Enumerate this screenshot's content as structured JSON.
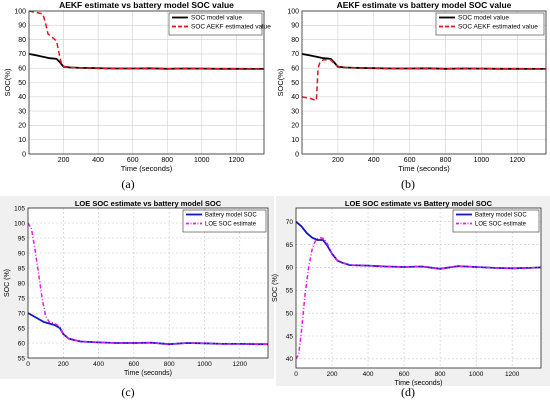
{
  "chart_data": [
    {
      "type": "line",
      "caption": "(a)",
      "title": "AEKF estimate vs battery model  SOC value",
      "xlabel": "Time (seconds)",
      "ylabel": "SOC(%)",
      "xlim": [
        0,
        1360
      ],
      "ylim": [
        0,
        100
      ],
      "xticks": [
        200,
        400,
        600,
        800,
        1000,
        1200
      ],
      "yticks": [
        0,
        10,
        20,
        30,
        40,
        50,
        60,
        70,
        80,
        90,
        100
      ],
      "grid": true,
      "legend_position": "top-right",
      "series": [
        {
          "name": "SOC model value",
          "color": "#000000",
          "style": "solid",
          "x": [
            0,
            40,
            80,
            120,
            160,
            180,
            200,
            240,
            300,
            400,
            500,
            600,
            700,
            800,
            900,
            1000,
            1100,
            1200,
            1300,
            1360
          ],
          "y": [
            70,
            69,
            68,
            67,
            66.5,
            64,
            61,
            60.5,
            60.2,
            60,
            59.8,
            59.8,
            59.9,
            59.6,
            59.8,
            59.7,
            59.6,
            59.6,
            59.5,
            59.5
          ]
        },
        {
          "name": "SOC AEKF estimated value",
          "color": "#e0141a",
          "style": "dashed",
          "x": [
            0,
            40,
            80,
            95,
            110,
            130,
            160,
            175,
            190,
            210,
            240,
            300,
            400,
            500,
            600,
            700,
            800,
            900,
            1000,
            1100,
            1200,
            1300,
            1360
          ],
          "y": [
            100,
            99,
            98,
            92,
            84,
            82,
            79,
            70,
            62,
            61,
            60.5,
            60.2,
            60,
            59.8,
            59.8,
            59.9,
            59.6,
            59.8,
            59.7,
            59.6,
            59.6,
            59.5,
            59.5
          ]
        }
      ]
    },
    {
      "type": "line",
      "caption": "(b)",
      "title": "AEKF estimate vs battery model  SOC value",
      "xlabel": "Time (seconds)",
      "ylabel": "SOC(%)",
      "xlim": [
        0,
        1360
      ],
      "ylim": [
        0,
        100
      ],
      "xticks": [
        200,
        400,
        600,
        800,
        1000,
        1200
      ],
      "yticks": [
        0,
        10,
        20,
        30,
        40,
        50,
        60,
        70,
        80,
        90,
        100
      ],
      "grid": true,
      "legend_position": "top-right",
      "series": [
        {
          "name": "SOC model value",
          "color": "#000000",
          "style": "solid",
          "x": [
            0,
            40,
            80,
            120,
            160,
            180,
            200,
            240,
            300,
            400,
            500,
            600,
            700,
            800,
            900,
            1000,
            1100,
            1200,
            1300,
            1360
          ],
          "y": [
            70,
            69,
            68,
            67,
            66.5,
            64,
            61,
            60.5,
            60.2,
            60,
            59.8,
            59.8,
            59.9,
            59.6,
            59.8,
            59.7,
            59.6,
            59.6,
            59.5,
            59.5
          ]
        },
        {
          "name": "SOC AEKF estimated value",
          "color": "#e0141a",
          "style": "dashed",
          "x": [
            0,
            40,
            80,
            90,
            100,
            120,
            160,
            190,
            210,
            240,
            300,
            400,
            500,
            600,
            700,
            800,
            900,
            1000,
            1100,
            1200,
            1300,
            1360
          ],
          "y": [
            40,
            39,
            37.5,
            60,
            64,
            66,
            65.8,
            62,
            61,
            60.5,
            60.2,
            60,
            59.8,
            59.8,
            59.9,
            59.6,
            59.8,
            59.7,
            59.6,
            59.6,
            59.5,
            59.5
          ]
        }
      ]
    },
    {
      "type": "line",
      "caption": "(c)",
      "title": "LOE  SOC  estimate  vs  battery model SOC",
      "xlabel": "Time (seconds)",
      "ylabel": "SOC (%)",
      "xlim": [
        0,
        1360
      ],
      "ylim": [
        55,
        105
      ],
      "xticks": [
        0,
        200,
        400,
        600,
        800,
        1000,
        1200
      ],
      "yticks": [
        55,
        60,
        65,
        70,
        75,
        80,
        85,
        90,
        95,
        100,
        105
      ],
      "grid": true,
      "legend_position": "top-right",
      "series": [
        {
          "name": "Battery  model SOC",
          "color": "#1414c8",
          "style": "solid",
          "x": [
            0,
            30,
            60,
            90,
            120,
            150,
            180,
            200,
            230,
            260,
            300,
            400,
            500,
            600,
            700,
            800,
            900,
            1000,
            1100,
            1200,
            1300,
            1360
          ],
          "y": [
            70,
            69,
            68,
            67,
            66.5,
            66,
            65,
            63,
            61.5,
            61,
            60.5,
            60.2,
            60,
            60,
            60.1,
            59.6,
            60,
            59.9,
            59.7,
            59.7,
            59.6,
            59.6
          ]
        },
        {
          "name": "LOE  SOC  estimate",
          "color": "#e619e6",
          "style": "dashdot",
          "x": [
            0,
            20,
            40,
            60,
            80,
            100,
            120,
            150,
            180,
            200,
            230,
            260,
            300,
            400,
            500,
            600,
            700,
            800,
            900,
            1000,
            1100,
            1200,
            1300,
            1360
          ],
          "y": [
            100,
            98,
            91,
            83,
            75,
            69,
            67,
            66.5,
            65.5,
            63,
            61.5,
            61,
            60.5,
            60.2,
            60,
            60,
            60.1,
            59.6,
            60,
            59.9,
            59.7,
            59.7,
            59.6,
            59.6
          ]
        }
      ]
    },
    {
      "type": "line",
      "caption": "(d)",
      "title": "LOE  SOC  estimate vs Battery  model SOC",
      "xlabel": "Time (seconds)",
      "ylabel": "SOC (%)",
      "xlim": [
        0,
        1360
      ],
      "ylim": [
        38,
        73
      ],
      "xticks": [
        0,
        200,
        400,
        600,
        800,
        1000,
        1200
      ],
      "yticks": [
        40,
        45,
        50,
        55,
        60,
        65,
        70
      ],
      "grid": true,
      "legend_position": "top-right",
      "series": [
        {
          "name": "Battery model SOC",
          "color": "#1414c8",
          "style": "solid",
          "x": [
            0,
            30,
            60,
            90,
            120,
            150,
            170,
            200,
            230,
            260,
            300,
            400,
            500,
            600,
            700,
            800,
            900,
            1000,
            1100,
            1200,
            1300,
            1360
          ],
          "y": [
            70,
            69,
            67.5,
            66.5,
            66,
            66,
            65,
            63,
            61.5,
            61,
            60.5,
            60.4,
            60.2,
            60.1,
            60.2,
            59.7,
            60.3,
            60.1,
            59.9,
            59.8,
            59.9,
            60
          ]
        },
        {
          "name": "LOE  SOC  estimate",
          "color": "#e619e6",
          "style": "dashdot",
          "x": [
            0,
            15,
            30,
            50,
            70,
            90,
            110,
            130,
            150,
            170,
            200,
            230,
            260,
            300,
            400,
            500,
            600,
            700,
            800,
            900,
            1000,
            1100,
            1200,
            1300,
            1360
          ],
          "y": [
            40,
            41,
            46,
            54,
            60,
            64,
            66,
            66.5,
            66.4,
            65.5,
            63,
            61.5,
            61,
            60.5,
            60.4,
            60.2,
            60.1,
            60.2,
            59.7,
            60.3,
            60.1,
            59.9,
            59.8,
            59.9,
            60
          ]
        }
      ]
    }
  ]
}
